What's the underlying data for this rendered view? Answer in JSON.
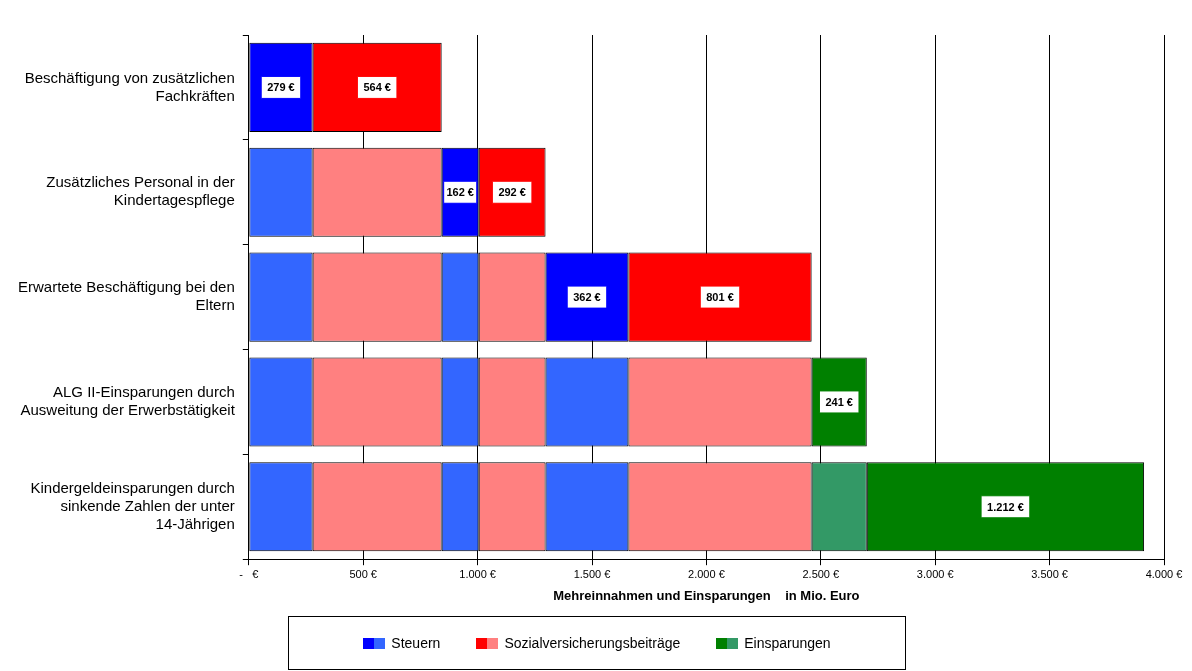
{
  "chart_data": {
    "type": "bar",
    "orientation": "horizontal",
    "stacked": true,
    "categories": [
      "Beschäftigung von zusätzlichen Fachkräften",
      "Zusätzliches Personal in der Kindertagespflege",
      "Erwartete Beschäftigung bei den Eltern",
      "ALG II-Einsparungen durch Ausweitung der Erwerbstätigkeit",
      "Kindergeldeinsparungen durch sinkende Zahlen der unter 14-Jährigen"
    ],
    "series": [
      {
        "name": "Steuern",
        "colors": [
          "#0000ff",
          "#3366ff",
          "#3366ff",
          "#3366ff",
          "#3366ff"
        ],
        "values": [
          279,
          279,
          279,
          279,
          279
        ],
        "value_labels": [
          "279 €",
          null,
          null,
          null,
          null
        ]
      },
      {
        "name": "Sozialversicherungsbeiträge",
        "colors": [
          "#ff0000",
          "#ff8080",
          "#ff8080",
          "#ff8080",
          "#ff8080"
        ],
        "values": [
          564,
          564,
          564,
          564,
          564
        ],
        "value_labels": [
          "564 €",
          null,
          null,
          null,
          null
        ]
      },
      {
        "colors": [
          null,
          "#0000ff",
          "#3366ff",
          "#3366ff",
          "#3366ff"
        ],
        "values": [
          null,
          162,
          162,
          162,
          162
        ],
        "value_labels": [
          null,
          "162 €",
          null,
          null,
          null
        ]
      },
      {
        "colors": [
          null,
          "#ff0000",
          "#ff8080",
          "#ff8080",
          "#ff8080"
        ],
        "values": [
          null,
          292,
          292,
          292,
          292
        ],
        "value_labels": [
          null,
          "292 €",
          null,
          null,
          null
        ]
      },
      {
        "colors": [
          null,
          null,
          "#0000ff",
          "#3366ff",
          "#3366ff"
        ],
        "values": [
          null,
          null,
          362,
          362,
          362
        ],
        "value_labels": [
          null,
          null,
          "362 €",
          null,
          null
        ]
      },
      {
        "colors": [
          null,
          null,
          "#ff0000",
          "#ff8080",
          "#ff8080"
        ],
        "values": [
          null,
          null,
          801,
          801,
          801
        ],
        "value_labels": [
          null,
          null,
          "801 €",
          null,
          null
        ]
      },
      {
        "name": "Einsparungen",
        "colors": [
          null,
          null,
          null,
          "#008000",
          "#339966"
        ],
        "values": [
          null,
          null,
          null,
          241,
          241
        ],
        "value_labels": [
          null,
          null,
          null,
          "241 €",
          null
        ]
      },
      {
        "colors": [
          null,
          null,
          null,
          null,
          "#008000"
        ],
        "values": [
          null,
          null,
          null,
          null,
          1212
        ],
        "value_labels": [
          null,
          null,
          null,
          null,
          "1.212 €"
        ]
      }
    ],
    "xlim": [
      0,
      4000
    ],
    "xticks": [
      {
        "value": 0,
        "label": "-   €"
      },
      {
        "value": 500,
        "label": "500 €"
      },
      {
        "value": 1000,
        "label": "1.000 €"
      },
      {
        "value": 1500,
        "label": "1.500 €"
      },
      {
        "value": 2000,
        "label": "2.000 €"
      },
      {
        "value": 2500,
        "label": "2.500 €"
      },
      {
        "value": 3000,
        "label": "3.000 €"
      },
      {
        "value": 3500,
        "label": "3.500 €"
      },
      {
        "value": 4000,
        "label": "4.000 €"
      }
    ],
    "xlabel": "Mehreinnahmen und Einsparungen    in Mio. Euro",
    "grid": "x",
    "legend": "bottom"
  }
}
